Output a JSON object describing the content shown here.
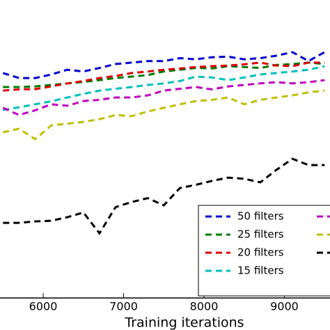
{
  "chart_data": {
    "type": "line",
    "x_label": "Training iterations",
    "x": [
      5500,
      5700,
      5900,
      6100,
      6300,
      6500,
      6700,
      6900,
      7100,
      7300,
      7500,
      7700,
      7900,
      8100,
      8300,
      8500,
      8700,
      8900,
      9100,
      9300,
      9500
    ],
    "xlim": [
      5463,
      9567
    ],
    "xticks": [
      6000,
      7000,
      8000,
      9000
    ],
    "ylim": [
      0,
      100
    ],
    "legend": "lower right",
    "series": [
      {
        "name": "50 filters",
        "color": "#0000cc",
        "values": [
          75.5,
          73.8,
          73.8,
          75.0,
          76.6,
          76.0,
          77.2,
          78.5,
          79.0,
          79.5,
          79.5,
          80.5,
          80.1,
          80.8,
          81.0,
          80.1,
          80.5,
          81.3,
          82.5,
          79.5,
          82.5
        ]
      },
      {
        "name": "25 filters",
        "color": "#007a00",
        "values": [
          70.8,
          70.8,
          71.0,
          71.5,
          72.0,
          72.5,
          73.1,
          73.8,
          74.3,
          74.8,
          76.0,
          76.6,
          77.2,
          77.0,
          77.8,
          77.5,
          77.2,
          78.2,
          78.5,
          79.0,
          78.5
        ]
      },
      {
        "name": "20 filters",
        "color": "#dd0000",
        "values": [
          69.6,
          70.0,
          70.1,
          71.0,
          72.0,
          72.8,
          73.8,
          74.5,
          75.5,
          76.0,
          76.6,
          77.0,
          77.5,
          77.8,
          78.0,
          78.4,
          79.0,
          78.0,
          77.8,
          79.0,
          79.0
        ]
      },
      {
        "name": "15 filters",
        "color": "#00bfbf",
        "values": [
          63.1,
          64.0,
          65.0,
          66.0,
          67.3,
          68.5,
          69.6,
          70.2,
          70.8,
          71.5,
          72.0,
          72.8,
          74.3,
          74.0,
          73.1,
          74.0,
          75.0,
          75.5,
          76.0,
          76.6,
          77.8
        ]
      },
      {
        "color": "#bf00bf",
        "values": [
          63.8,
          61.4,
          63.0,
          65.0,
          64.5,
          66.1,
          66.5,
          67.3,
          67.3,
          68.0,
          69.6,
          70.2,
          70.8,
          70.0,
          71.0,
          71.5,
          72.0,
          72.4,
          72.0,
          72.4,
          73.1
        ]
      },
      {
        "color": "#bfbf00",
        "values": [
          55.6,
          56.8,
          53.3,
          57.9,
          58.5,
          59.1,
          60.0,
          61.4,
          61.0,
          62.6,
          63.8,
          65.0,
          66.1,
          66.5,
          67.3,
          65.0,
          66.5,
          67.3,
          68.0,
          69.0,
          69.6
        ]
      },
      {
        "color": "#000000",
        "values": [
          25.2,
          25.2,
          25.7,
          25.9,
          27.1,
          28.7,
          21.7,
          30.5,
          32.2,
          33.5,
          31.1,
          36.9,
          38.0,
          39.3,
          40.4,
          40.0,
          38.8,
          43.0,
          46.7,
          44.6,
          44.6
        ]
      }
    ]
  }
}
